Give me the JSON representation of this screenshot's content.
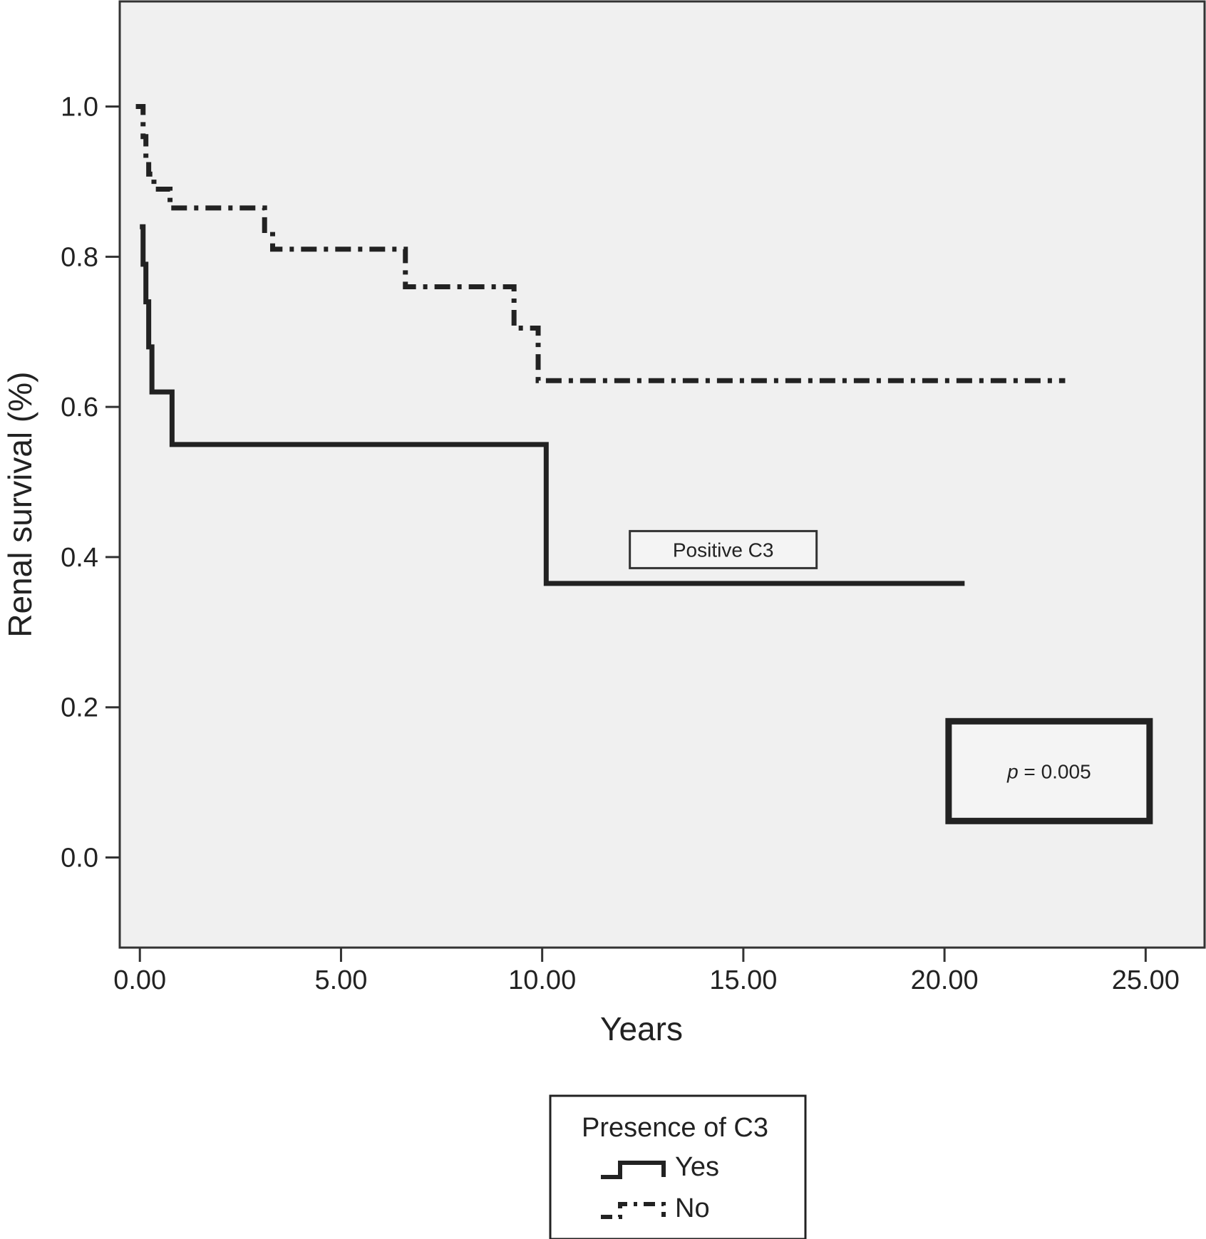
{
  "chart_data": {
    "type": "line",
    "subtype": "kaplan-meier step",
    "title": "",
    "xlabel": "Years",
    "ylabel": "Renal survival (%)",
    "xlim": [
      -0.5,
      26.5
    ],
    "ylim": [
      -0.12,
      1.14
    ],
    "x_ticks": [
      0,
      5,
      10,
      15,
      20,
      25
    ],
    "x_tick_labels": [
      "0.00",
      "5.00",
      "10.00",
      "15.00",
      "20.00",
      "25.00"
    ],
    "y_ticks": [
      0,
      0.2,
      0.4,
      0.6,
      0.8,
      1.0
    ],
    "y_tick_labels": [
      "0.0",
      "0.2",
      "0.4",
      "0.6",
      "0.8",
      "1.0"
    ],
    "grid": false,
    "plot_background": "#f0f0f0",
    "series": [
      {
        "name": "Yes",
        "style": "solid",
        "color": "#222222",
        "points": [
          [
            0.0,
            0.84
          ],
          [
            0.08,
            0.79
          ],
          [
            0.15,
            0.74
          ],
          [
            0.22,
            0.68
          ],
          [
            0.3,
            0.62
          ],
          [
            0.8,
            0.55
          ],
          [
            10.1,
            0.365
          ],
          [
            20.5,
            0.365
          ]
        ]
      },
      {
        "name": "No",
        "style": "dash-dot",
        "color": "#222222",
        "points": [
          [
            -0.1,
            1.0
          ],
          [
            0.08,
            0.96
          ],
          [
            0.15,
            0.93
          ],
          [
            0.22,
            0.91
          ],
          [
            0.35,
            0.89
          ],
          [
            0.75,
            0.865
          ],
          [
            3.1,
            0.835
          ],
          [
            3.3,
            0.81
          ],
          [
            6.6,
            0.76
          ],
          [
            9.3,
            0.705
          ],
          [
            9.9,
            0.635
          ],
          [
            23.0,
            0.635
          ]
        ]
      }
    ],
    "annotations": [
      {
        "text": "Positive C3",
        "x": 14.5,
        "y": 0.41,
        "boxed": true
      },
      {
        "text_italic": "p",
        "text": " = 0.005",
        "x": 22.6,
        "y": 0.115,
        "boxed": true,
        "box_style": "thick"
      }
    ],
    "legend": {
      "title": "Presence of C3",
      "placement": "below-center",
      "entries": [
        "Yes",
        "No"
      ]
    }
  }
}
